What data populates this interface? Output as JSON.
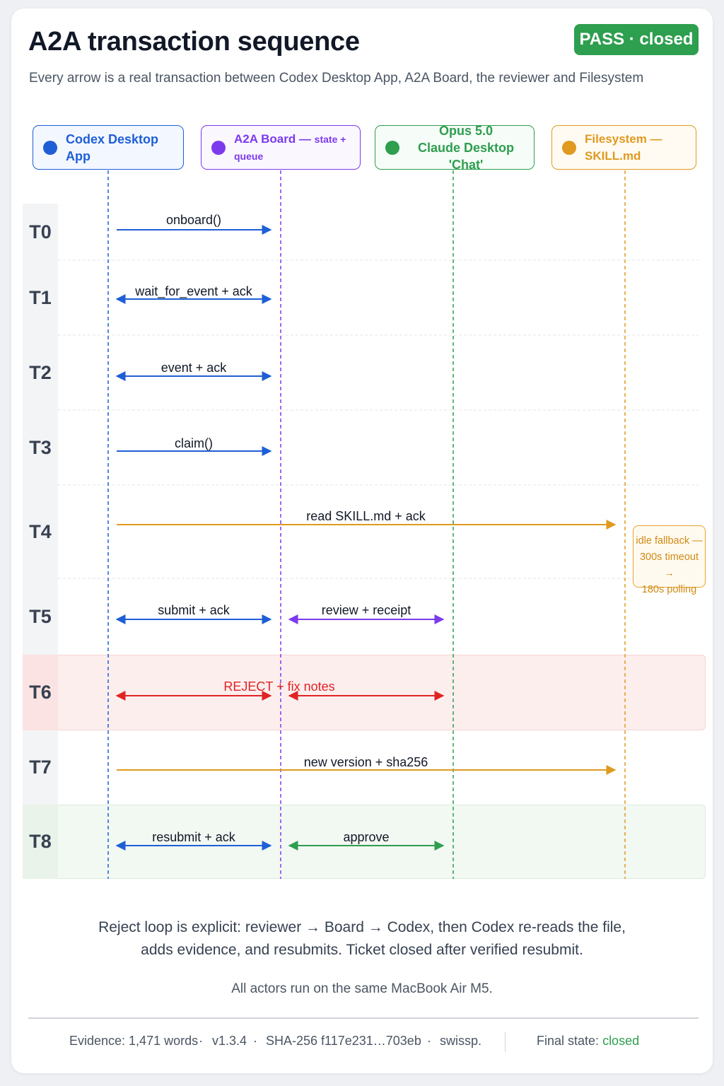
{
  "header": {
    "title": "A2A transaction sequence",
    "status_badge": "PASS · closed",
    "subtitle": "Every arrow is a real transaction between Codex Desktop App, A2A Board, the reviewer and Filesystem"
  },
  "actors": [
    {
      "line1": "Codex Desktop App",
      "line1_sub": "",
      "line2": "",
      "color": "#1f5fd6",
      "bg": "#f3f7ff"
    },
    {
      "line1": "A2A Board — ",
      "line1_sub": "state + queue",
      "line2": "",
      "color": "#7c3aed",
      "bg": "#faf7ff"
    },
    {
      "line1": "Opus 5.0",
      "line1_sub": "",
      "line2": "Claude Desktop 'Chat'",
      "color": "#2e9e4f",
      "bg": "#f6fcf7"
    },
    {
      "line1": "Filesystem — SKILL.md",
      "line1_sub": "",
      "line2": "",
      "color": "#e09a1f",
      "bg": "#fffbf3"
    }
  ],
  "rows": [
    {
      "id": "T0",
      "messages": [
        {
          "label": "onboard()",
          "from": 0,
          "to": 1,
          "bidirectional": false,
          "color": "#1f5fd6"
        }
      ]
    },
    {
      "id": "T1",
      "messages": [
        {
          "label": "wait_for_event + ack",
          "from": 0,
          "to": 1,
          "bidirectional": true,
          "color": "#1f5fd6"
        }
      ]
    },
    {
      "id": "T2",
      "messages": [
        {
          "label": "event + ack",
          "from": 0,
          "to": 1,
          "bidirectional": true,
          "color": "#1f5fd6"
        }
      ]
    },
    {
      "id": "T3",
      "messages": [
        {
          "label": "claim()",
          "from": 0,
          "to": 1,
          "bidirectional": false,
          "color": "#1f5fd6"
        }
      ]
    },
    {
      "id": "T4",
      "messages": [
        {
          "label": "read SKILL.md + ack",
          "from": 0,
          "to": 3,
          "bidirectional": false,
          "color": "#e09a1f"
        }
      ]
    },
    {
      "id": "T5",
      "messages": [
        {
          "label": "submit + ack",
          "from": 0,
          "to": 1,
          "bidirectional": true,
          "color": "#1f5fd6"
        },
        {
          "label": "review + receipt",
          "from": 1,
          "to": 2,
          "bidirectional": true,
          "color": "#7c3aed"
        }
      ]
    },
    {
      "id": "T6",
      "highlight": "reject",
      "messages": [
        {
          "label": "REJECT + fix notes",
          "from": 0,
          "to": 1,
          "bidirectional": true,
          "color": "#e02424",
          "label_span": true
        },
        {
          "label": "",
          "from": 1,
          "to": 2,
          "bidirectional": true,
          "color": "#e02424"
        }
      ]
    },
    {
      "id": "T7",
      "messages": [
        {
          "label": "new version + sha256",
          "from": 0,
          "to": 3,
          "bidirectional": false,
          "color": "#e09a1f"
        }
      ]
    },
    {
      "id": "T8",
      "highlight": "approve",
      "messages": [
        {
          "label": "resubmit + ack",
          "from": 0,
          "to": 1,
          "bidirectional": true,
          "color": "#1f5fd6"
        },
        {
          "label": "approve",
          "from": 1,
          "to": 2,
          "bidirectional": true,
          "color": "#2e9e4f"
        }
      ]
    }
  ],
  "note": {
    "line1": "idle fallback —",
    "line2": "300s timeout →",
    "line3": "180s polling"
  },
  "footnote": {
    "line1": "Reject loop is explicit: reviewer → Board → Codex, then Codex re-reads the file,",
    "line2": "adds evidence, and resubmits. Ticket closed after verified resubmit.",
    "line3": "All actors run on the same MacBook Air M5."
  },
  "footer": {
    "evidence": "Evidence: 1,471 words",
    "version": "v1.3.4",
    "sha": "SHA-256 f117e231…703eb",
    "author": "swissp.",
    "final_state_label": "Final state:",
    "final_state_value": "closed"
  }
}
